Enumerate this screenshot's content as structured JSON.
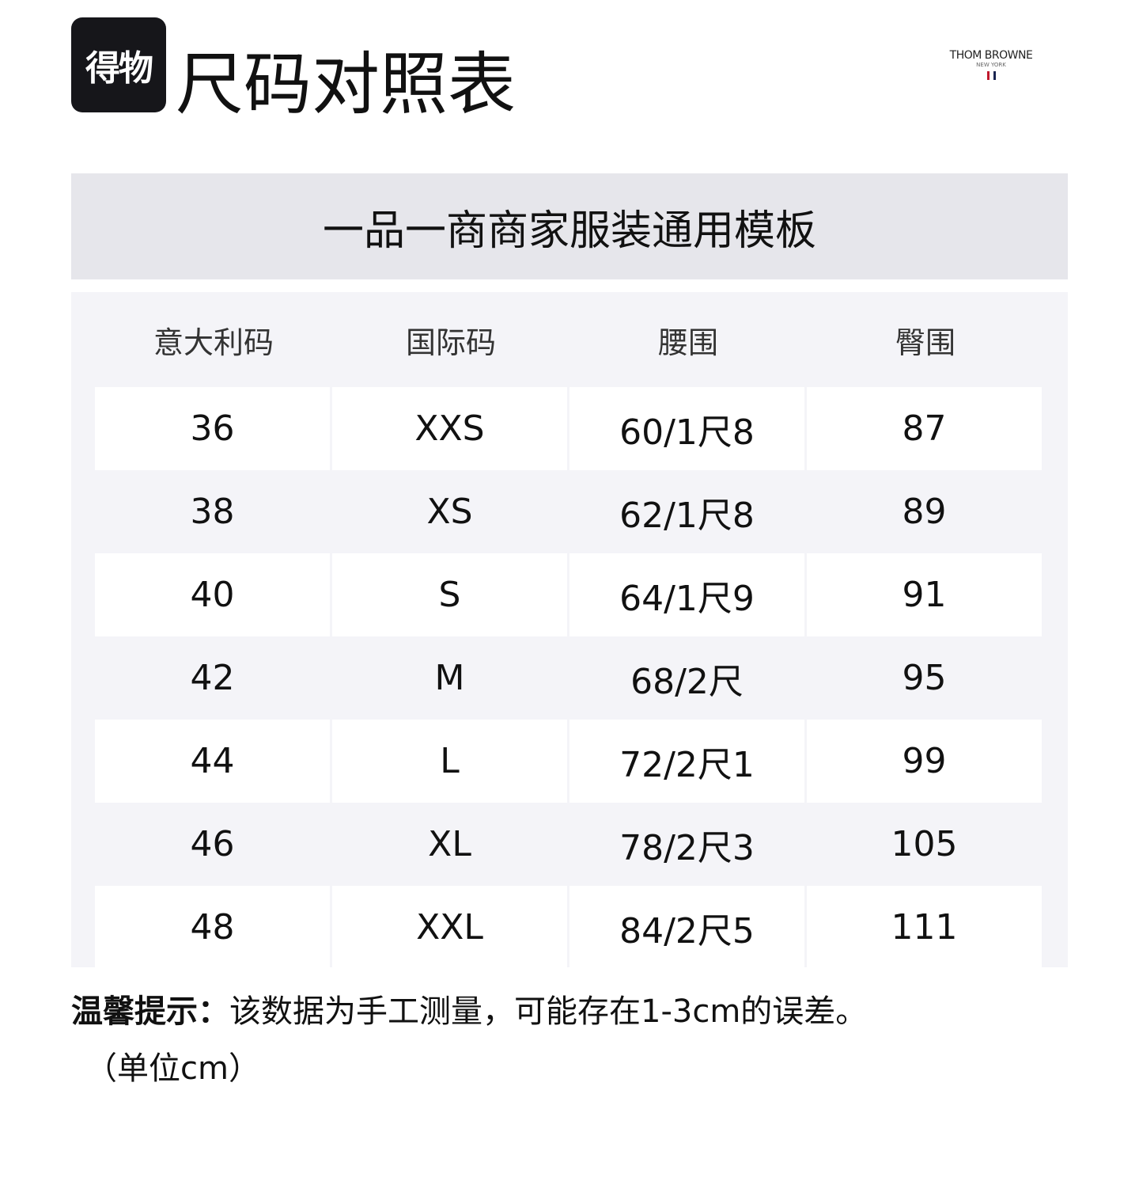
{
  "logo": {
    "text": "得物"
  },
  "title": "尺码对照表",
  "brand": {
    "name": "THOM BROWNE",
    "sub": "NEW YORK",
    "colors": [
      "#c0182c",
      "#1a2550"
    ]
  },
  "band_title": "一品一商商家服装通用模板",
  "table": {
    "headers": [
      "意大利码",
      "国际码",
      "腰围",
      "臀围"
    ],
    "rows": [
      [
        "36",
        "XXS",
        "60/1尺8",
        "87"
      ],
      [
        "38",
        "XS",
        "62/1尺8",
        "89"
      ],
      [
        "40",
        "S",
        "64/1尺9",
        "91"
      ],
      [
        "42",
        "M",
        "68/2尺",
        "95"
      ],
      [
        "44",
        "L",
        "72/2尺1",
        "99"
      ],
      [
        "46",
        "XL",
        "78/2尺3",
        "105"
      ],
      [
        "48",
        "XXL",
        "84/2尺5",
        "111"
      ]
    ]
  },
  "note": {
    "label": "温馨提示：",
    "text": "该数据为手工测量，可能存在1-3cm的误差。",
    "unit": "（单位cm）"
  }
}
